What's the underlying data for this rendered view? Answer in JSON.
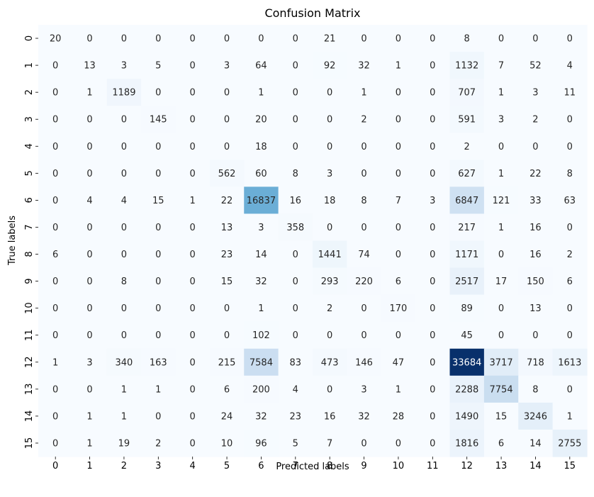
{
  "chart_data": {
    "type": "heatmap",
    "title": "Confusion Matrix",
    "xlabel": "Predicted labels",
    "ylabel": "True labels",
    "x_ticks": [
      "0",
      "1",
      "2",
      "3",
      "4",
      "5",
      "6",
      "7",
      "8",
      "9",
      "10",
      "11",
      "12",
      "13",
      "14",
      "15"
    ],
    "y_ticks": [
      "0",
      "1",
      "2",
      "3",
      "4",
      "5",
      "6",
      "7",
      "8",
      "9",
      "10",
      "11",
      "12",
      "13",
      "14",
      "15"
    ],
    "colormap": "Blues",
    "color_range": [
      0,
      33684
    ],
    "colorbar": false,
    "values": [
      [
        20,
        0,
        0,
        0,
        0,
        0,
        0,
        0,
        21,
        0,
        0,
        0,
        8,
        0,
        0,
        0
      ],
      [
        0,
        13,
        3,
        5,
        0,
        3,
        64,
        0,
        92,
        32,
        1,
        0,
        1132,
        7,
        52,
        4
      ],
      [
        0,
        1,
        1189,
        0,
        0,
        0,
        1,
        0,
        0,
        1,
        0,
        0,
        707,
        1,
        3,
        11
      ],
      [
        0,
        0,
        0,
        145,
        0,
        0,
        20,
        0,
        0,
        2,
        0,
        0,
        591,
        3,
        2,
        0
      ],
      [
        0,
        0,
        0,
        0,
        0,
        0,
        18,
        0,
        0,
        0,
        0,
        0,
        2,
        0,
        0,
        0
      ],
      [
        0,
        0,
        0,
        0,
        0,
        562,
        60,
        8,
        3,
        0,
        0,
        0,
        627,
        1,
        22,
        8
      ],
      [
        0,
        4,
        4,
        15,
        1,
        22,
        16837,
        16,
        18,
        8,
        7,
        3,
        6847,
        121,
        33,
        63
      ],
      [
        0,
        0,
        0,
        0,
        0,
        13,
        3,
        358,
        0,
        0,
        0,
        0,
        217,
        1,
        16,
        0
      ],
      [
        6,
        0,
        0,
        0,
        0,
        23,
        14,
        0,
        1441,
        74,
        0,
        0,
        1171,
        0,
        16,
        2
      ],
      [
        0,
        0,
        8,
        0,
        0,
        15,
        32,
        0,
        293,
        220,
        6,
        0,
        2517,
        17,
        150,
        6
      ],
      [
        0,
        0,
        0,
        0,
        0,
        0,
        1,
        0,
        2,
        0,
        170,
        0,
        89,
        0,
        13,
        0
      ],
      [
        0,
        0,
        0,
        0,
        0,
        0,
        102,
        0,
        0,
        0,
        0,
        0,
        45,
        0,
        0,
        0
      ],
      [
        1,
        3,
        340,
        163,
        0,
        215,
        7584,
        83,
        473,
        146,
        47,
        0,
        33684,
        3717,
        718,
        1613
      ],
      [
        0,
        0,
        1,
        1,
        0,
        6,
        200,
        4,
        0,
        3,
        1,
        0,
        2288,
        7754,
        8,
        0
      ],
      [
        0,
        1,
        1,
        0,
        0,
        24,
        32,
        23,
        16,
        32,
        28,
        0,
        1490,
        15,
        3246,
        1
      ],
      [
        0,
        1,
        19,
        2,
        0,
        10,
        96,
        5,
        7,
        0,
        0,
        0,
        1816,
        6,
        14,
        2755
      ]
    ]
  }
}
